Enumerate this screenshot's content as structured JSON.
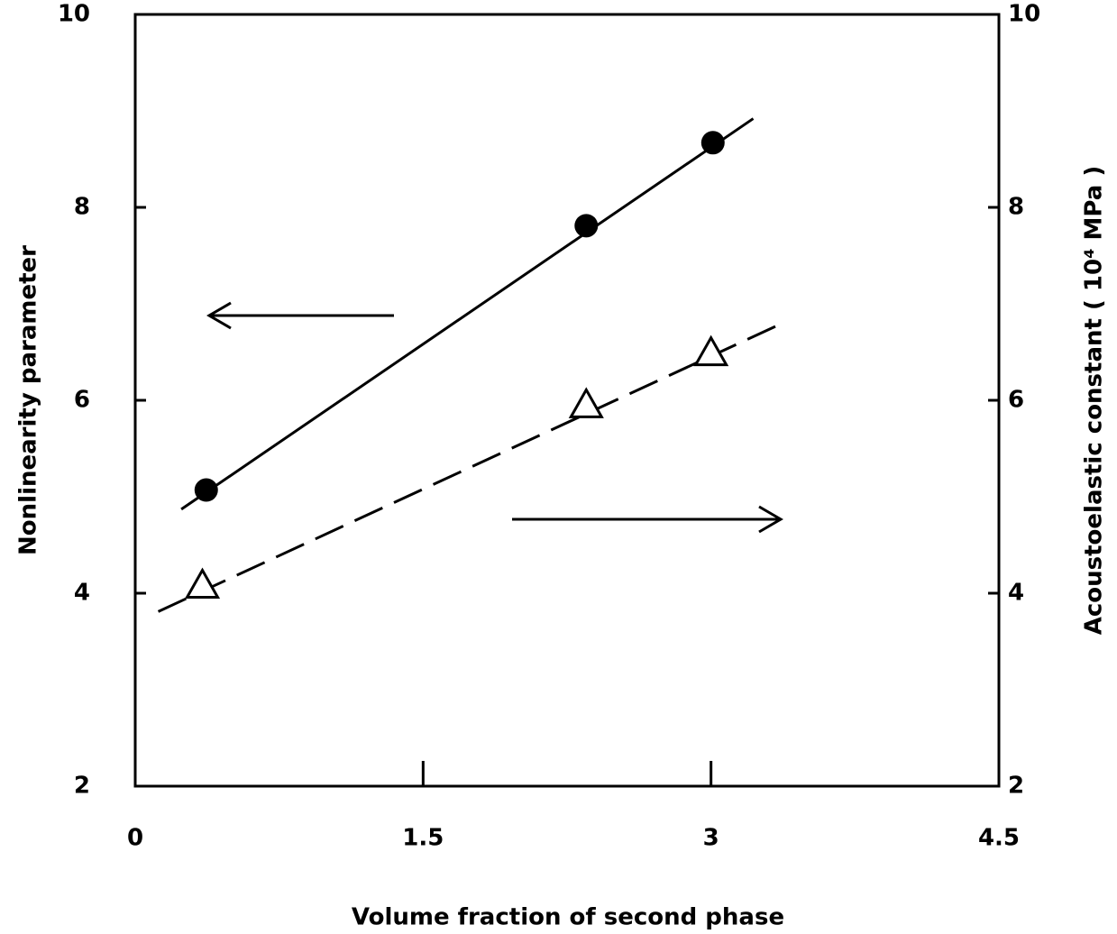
{
  "chart_data": {
    "type": "scatter",
    "xlabel": "Volume fraction of second phase",
    "ylabel": "Nonlinearity parameter",
    "y2label": "Acoustoelastic constant ( 10⁴ MPa )",
    "xlim": [
      0,
      4.5
    ],
    "xticks": [
      0,
      1.5,
      3,
      4.5
    ],
    "ylim": [
      2,
      10
    ],
    "yticks": [
      2,
      4,
      6,
      8,
      10
    ],
    "y2lim": [
      2,
      10
    ],
    "y2ticks": [
      2,
      4,
      6,
      8,
      10
    ],
    "series": [
      {
        "marker": "circle",
        "color": "#000000",
        "x": [
          0.37,
          2.35,
          3.01
        ],
        "values": [
          5.07,
          7.81,
          8.67
        ],
        "fit": {
          "x": [
            0.24,
            3.22
          ],
          "values": [
            4.87,
            8.92
          ],
          "dash": "solid"
        }
      },
      {
        "marker": "triangle",
        "axis": "y2",
        "color": "#000000",
        "x": [
          0.35,
          2.35,
          3.0
        ],
        "values": [
          4.07,
          5.94,
          6.48
        ],
        "fit": {
          "x": [
            0.12,
            3.34
          ],
          "values": [
            3.81,
            6.77
          ],
          "dash": "dashed"
        }
      }
    ]
  }
}
